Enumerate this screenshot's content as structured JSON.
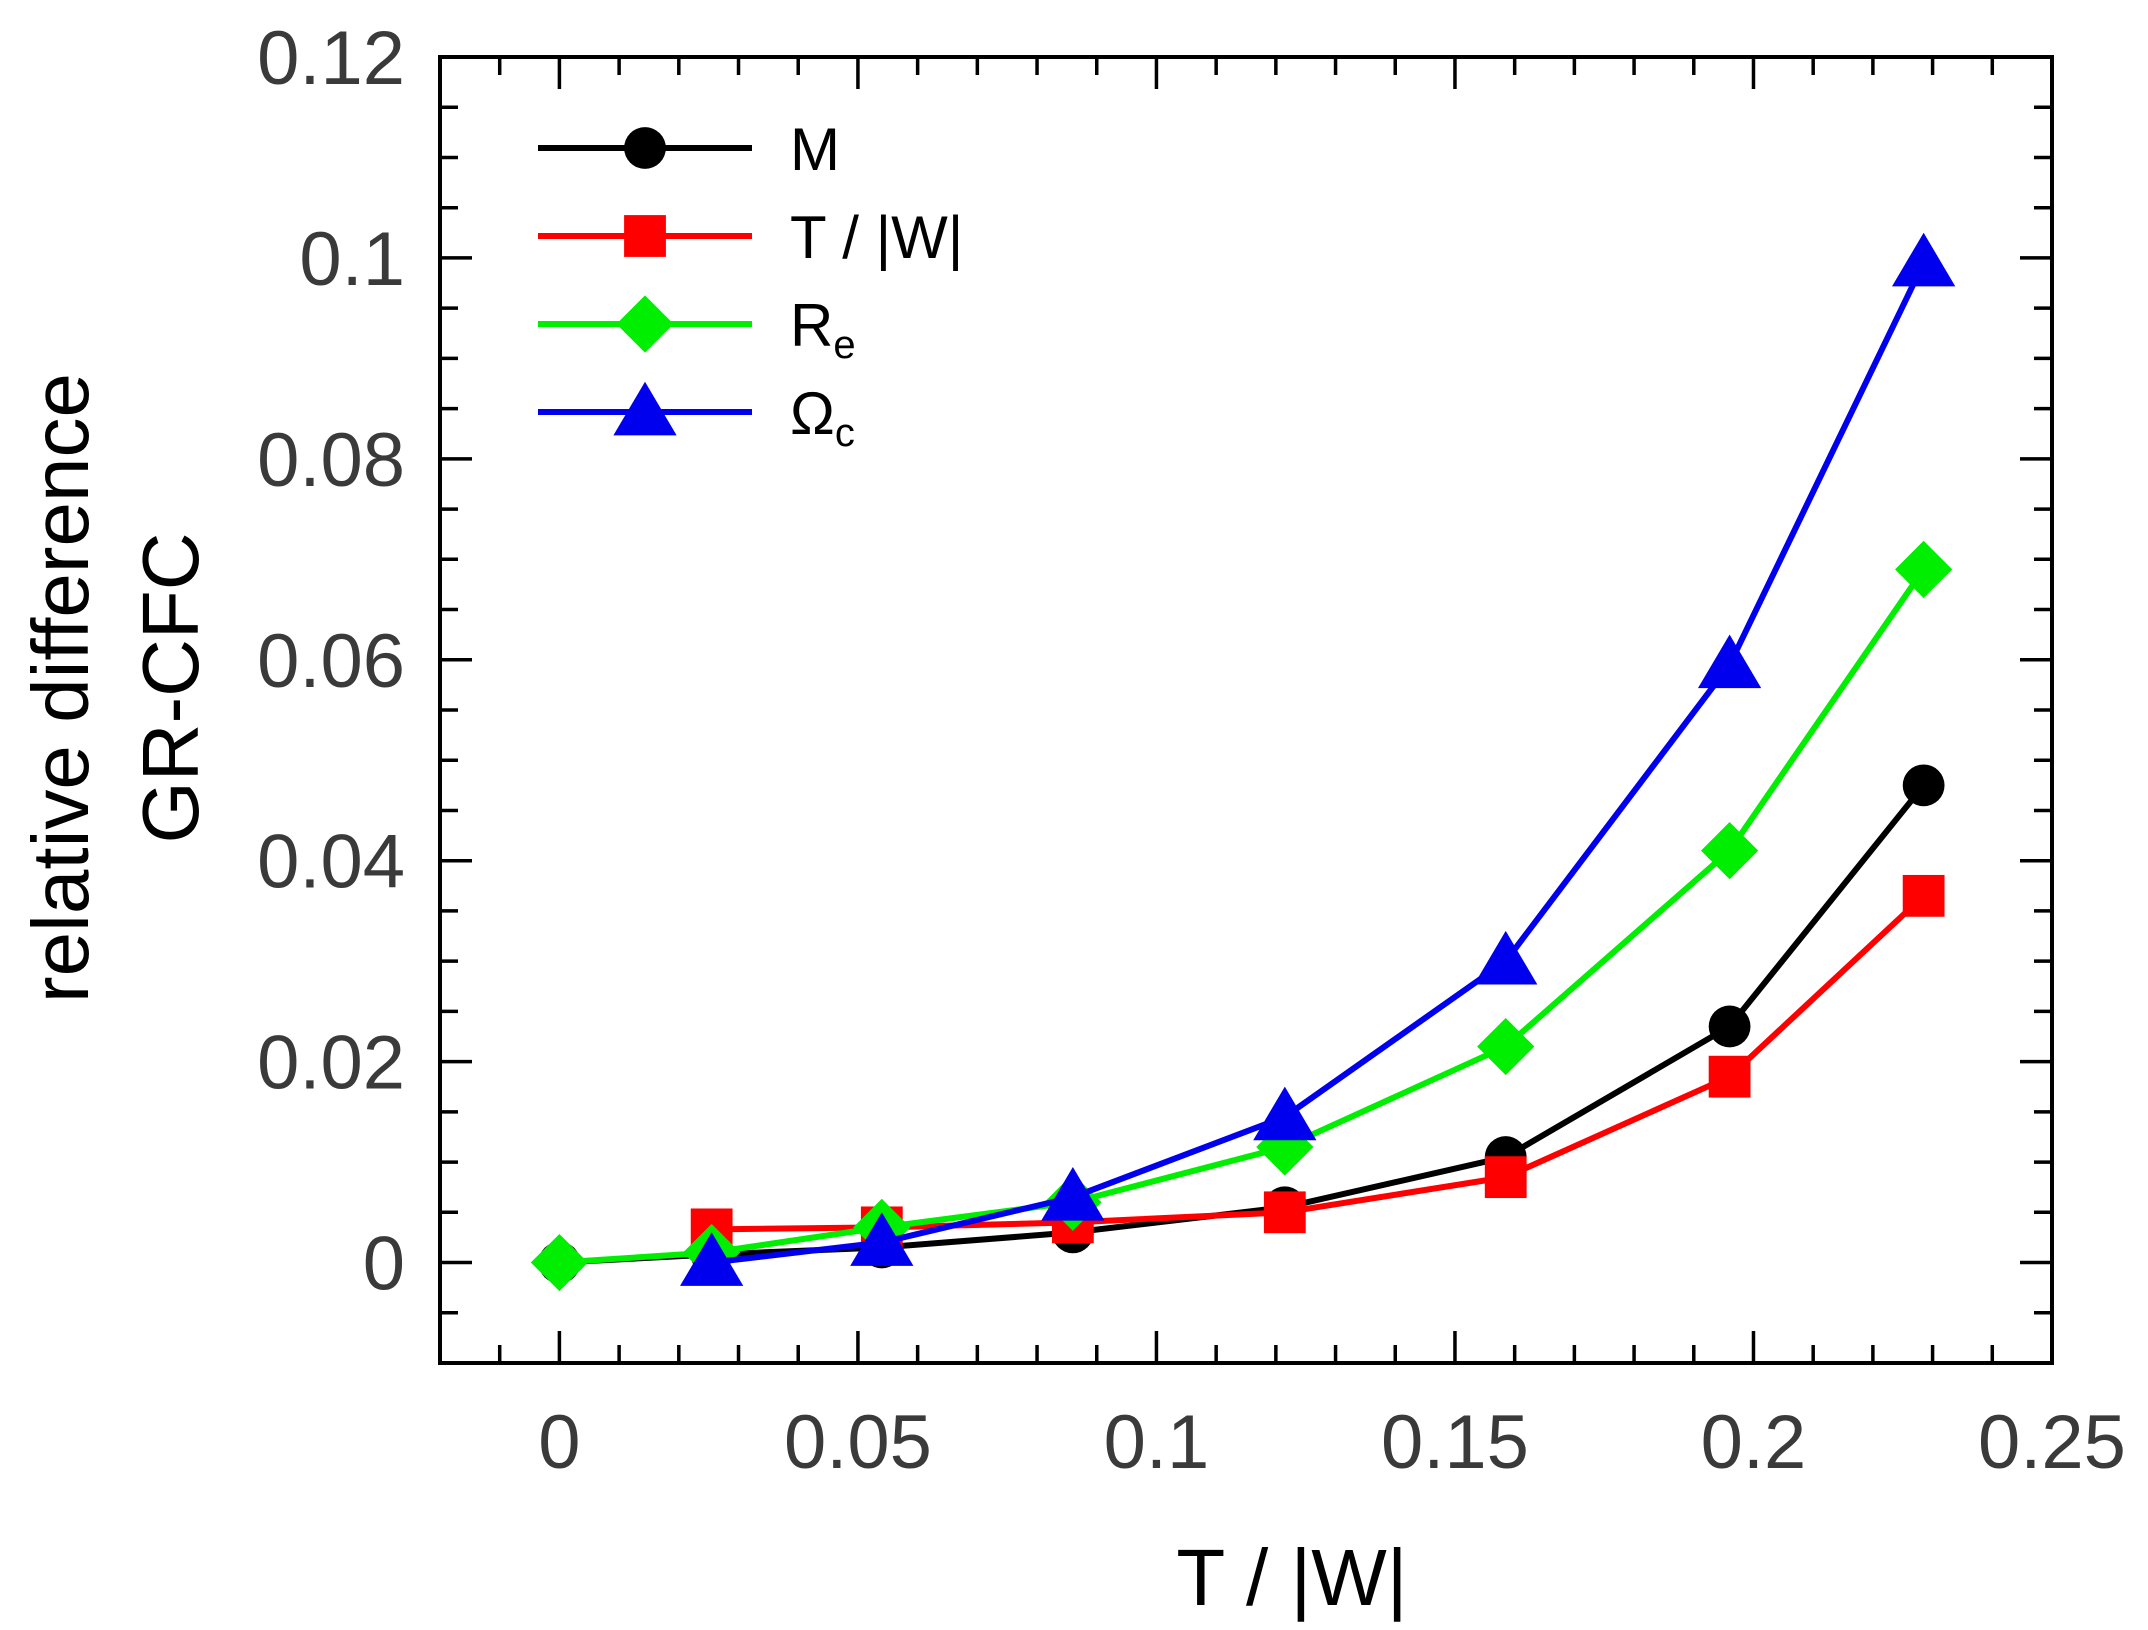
{
  "chart_data": {
    "type": "line",
    "title": "",
    "xlabel": "T / |W|",
    "ylabel_line1": "relative difference",
    "ylabel_line2": "GR-CFC",
    "xlim": [
      -0.02,
      0.25
    ],
    "ylim": [
      -0.01,
      0.12
    ],
    "x_ticks": [
      0,
      0.05,
      0.1,
      0.15,
      0.2,
      0.25
    ],
    "x_tick_labels": [
      "0",
      "0.05",
      "0.1",
      "0.15",
      "0.2",
      "0.25"
    ],
    "y_ticks": [
      0,
      0.02,
      0.04,
      0.06,
      0.08,
      0.1,
      0.12
    ],
    "y_tick_labels": [
      "0",
      "0.02",
      "0.04",
      "0.06",
      "0.08",
      "0.1",
      "0.12"
    ],
    "x_minor_step": 0.01,
    "y_minor_step": 0.005,
    "grid": false,
    "legend_position": "top-left",
    "series": [
      {
        "name": "M",
        "label_main": "M",
        "label_sub": "",
        "color": "#000000",
        "marker": "circle",
        "x": [
          0,
          0.0255,
          0.054,
          0.086,
          0.1215,
          0.1585,
          0.196,
          0.2285
        ],
        "y": [
          0,
          0.0008,
          0.0015,
          0.003,
          0.0055,
          0.0105,
          0.0235,
          0.0475
        ]
      },
      {
        "name": "T / |W|",
        "label_main": "T / |W|",
        "label_sub": "",
        "color": "#ff0000",
        "marker": "square",
        "x": [
          0.0255,
          0.054,
          0.086,
          0.1215,
          0.1585,
          0.196,
          0.2285
        ],
        "y": [
          0.0033,
          0.0035,
          0.004,
          0.005,
          0.0085,
          0.0185,
          0.0365
        ]
      },
      {
        "name": "Re",
        "label_main": "R",
        "label_sub": "e",
        "color": "#00ee00",
        "marker": "diamond",
        "x": [
          0,
          0.0255,
          0.054,
          0.086,
          0.1215,
          0.1585,
          0.196,
          0.2285
        ],
        "y": [
          0,
          0.001,
          0.0035,
          0.006,
          0.0115,
          0.0215,
          0.041,
          0.069
        ]
      },
      {
        "name": "Ωc",
        "label_main": "Ω",
        "label_sub": "c",
        "color": "#0000ee",
        "marker": "triangle",
        "x": [
          0.0255,
          0.054,
          0.086,
          0.1215,
          0.1585,
          0.196,
          0.2285
        ],
        "y": [
          0.0,
          0.002,
          0.0065,
          0.0145,
          0.03,
          0.0595,
          0.0995
        ]
      }
    ]
  }
}
